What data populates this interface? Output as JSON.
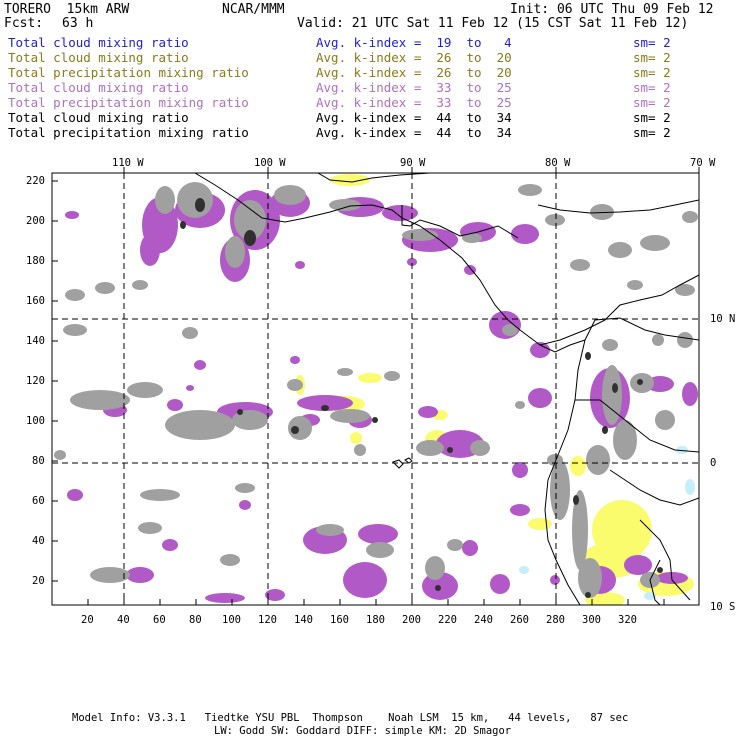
{
  "header": {
    "model": "TORERO  15km ARW",
    "org": "NCAR/MMM",
    "init": "Init: 06 UTC Thu 09 Feb 12",
    "fcst_label": "Fcst:",
    "fcst_value": "63 h",
    "valid": "Valid: 21 UTC Sat 11 Feb 12 (15 CST Sat 11 Feb 12)"
  },
  "legend": [
    {
      "name": "Total cloud mixing ratio",
      "avg": "Avg. k-index =  19  to   4",
      "sm": "sm= 2",
      "color": "#1f1fd0"
    },
    {
      "name": "Total cloud mixing ratio",
      "avg": "Avg. k-index =  26  to  20",
      "sm": "sm= 2",
      "color": "#8a7a1a"
    },
    {
      "name": "Total precipitation mixing ratio",
      "avg": "Avg. k-index =  26  to  20",
      "sm": "sm= 2",
      "color": "#8a7a1a"
    },
    {
      "name": "Total cloud mixing ratio",
      "avg": "Avg. k-index =  33  to  25",
      "sm": "sm= 2",
      "color": "#b070c0"
    },
    {
      "name": "Total precipitation mixing ratio",
      "avg": "Avg. k-index =  33  to  25",
      "sm": "sm= 2",
      "color": "#b070c0"
    },
    {
      "name": "Total cloud mixing ratio",
      "avg": "Avg. k-index =  44  to  34",
      "sm": "sm= 2",
      "color": "#000000"
    },
    {
      "name": "Total precipitation mixing ratio",
      "avg": "Avg. k-index =  44  to  34",
      "sm": "sm= 2",
      "color": "#000000"
    }
  ],
  "top_lon_labels": [
    "110 W",
    "100 W",
    "90 W",
    "80 W",
    "70 W"
  ],
  "right_lat_labels": [
    "10 N",
    "0",
    "10 S"
  ],
  "left_ticks": [
    "220",
    "200",
    "180",
    "160",
    "140",
    "120",
    "100",
    "80",
    "60",
    "40",
    "20"
  ],
  "bottom_ticks": [
    "20",
    "40",
    "60",
    "80",
    "100",
    "120",
    "140",
    "160",
    "180",
    "200",
    "220",
    "240",
    "260",
    "280",
    "300",
    "320"
  ],
  "colors": {
    "light_cloud": "#fbfb6e",
    "mid_cloud": "#b159c6",
    "heavy_cloud": "#a0a0a0",
    "dark_core": "#303030",
    "low_cloud": "#c6eef8"
  },
  "footer": {
    "line1": "Model Info: V3.3.1   Tiedtke YSU PBL  Thompson    Noah LSM  15 km,   44 levels,   87 sec",
    "line2": "LW: Godd SW: Goddard DIFF: simple KM: 2D Smagor"
  }
}
